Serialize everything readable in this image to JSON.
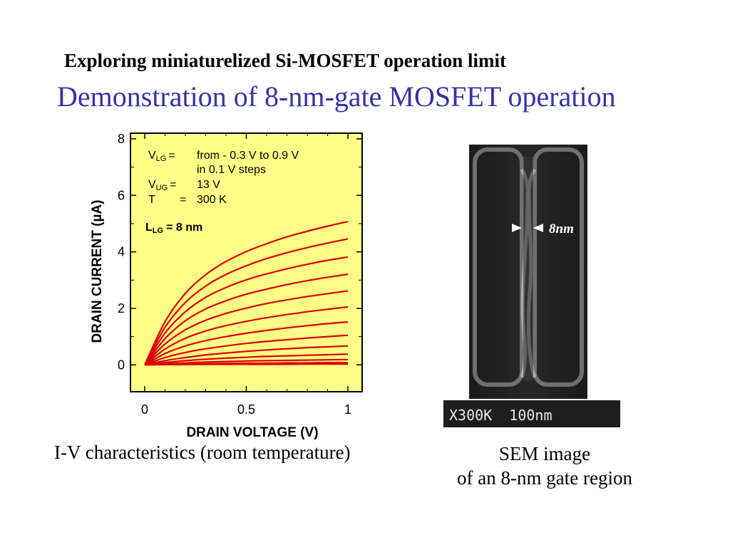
{
  "slide": {
    "subtitle": "Exploring miniaturelized Si-MOSFET operation limit",
    "title": "Demonstration of 8-nm-gate MOSFET operation",
    "caption_left": "I-V characteristics (room temperature)",
    "caption_right_line1": "SEM image",
    "caption_right_line2": "of an 8-nm gate region"
  },
  "annotation": {
    "vlg_label": "V",
    "vlg_sub": "LG",
    "vlg_eq": "=",
    "vlg_value": "from - 0.3 V to 0.9 V",
    "vlg_value2": "in 0.1 V steps",
    "vug_label": "V",
    "vug_sub": "UG",
    "vug_eq": "=",
    "vug_value": "13 V",
    "t_label": "T",
    "t_eq": "=",
    "t_value": "300 K",
    "lg_label": "L",
    "lg_sub": "LG",
    "lg_value": "= 8 nm"
  },
  "sem": {
    "scale_text": "X300K  100nm",
    "marker_text": "8nm"
  },
  "colors": {
    "plot_bg": "#ffff88",
    "curve": "#dd0000",
    "title": "#3333a8"
  },
  "chart_data": {
    "type": "line",
    "xlabel": "DRAIN VOLTAGE (V)",
    "ylabel": "DRAIN CURRENT (µA)",
    "xlim": [
      -0.07,
      1.07
    ],
    "ylim": [
      -0.95,
      8.2
    ],
    "xticks": [
      0,
      0.5,
      1
    ],
    "xtick_labels": [
      "0",
      "0.5",
      "1"
    ],
    "yticks": [
      0,
      2,
      4,
      6,
      8
    ],
    "ytick_labels": [
      "0",
      "2",
      "4",
      "6",
      "8"
    ],
    "grid": false,
    "x": [
      0,
      0.1,
      0.2,
      0.3,
      0.4,
      0.5,
      0.6,
      0.7,
      0.8,
      0.9,
      1.0
    ],
    "series": [
      {
        "values": [
          0,
          0.01,
          0.01,
          0.02,
          0.02,
          0.02,
          0.02,
          0.02,
          0.03,
          0.03,
          0.03
        ]
      },
      {
        "values": [
          0,
          0.02,
          0.03,
          0.04,
          0.05,
          0.06,
          0.06,
          0.07,
          0.07,
          0.08,
          0.08
        ]
      },
      {
        "values": [
          0,
          0.04,
          0.07,
          0.1,
          0.12,
          0.14,
          0.15,
          0.16,
          0.17,
          0.18,
          0.19
        ]
      },
      {
        "values": [
          0,
          0.08,
          0.15,
          0.2,
          0.24,
          0.27,
          0.3,
          0.32,
          0.34,
          0.36,
          0.38
        ]
      },
      {
        "values": [
          0,
          0.15,
          0.26,
          0.35,
          0.42,
          0.48,
          0.53,
          0.57,
          0.61,
          0.64,
          0.67
        ]
      },
      {
        "values": [
          0,
          0.26,
          0.44,
          0.57,
          0.67,
          0.76,
          0.83,
          0.89,
          0.95,
          1.0,
          1.05
        ]
      },
      {
        "values": [
          0,
          0.4,
          0.67,
          0.86,
          1.0,
          1.12,
          1.22,
          1.31,
          1.39,
          1.46,
          1.52
        ]
      },
      {
        "values": [
          0,
          0.56,
          0.94,
          1.2,
          1.39,
          1.54,
          1.67,
          1.78,
          1.88,
          1.97,
          2.05
        ]
      },
      {
        "values": [
          0,
          0.74,
          1.24,
          1.58,
          1.82,
          2.01,
          2.17,
          2.3,
          2.42,
          2.52,
          2.62
        ]
      },
      {
        "values": [
          0,
          0.93,
          1.56,
          1.98,
          2.27,
          2.5,
          2.68,
          2.84,
          2.98,
          3.1,
          3.21
        ]
      },
      {
        "values": [
          0,
          1.13,
          1.88,
          2.39,
          2.74,
          3.01,
          3.22,
          3.4,
          3.56,
          3.7,
          3.82
        ]
      },
      {
        "values": [
          0,
          1.33,
          2.21,
          2.79,
          3.2,
          3.51,
          3.76,
          3.97,
          4.15,
          4.31,
          4.46
        ]
      },
      {
        "values": [
          0,
          1.53,
          2.53,
          3.19,
          3.66,
          4.01,
          4.29,
          4.53,
          4.73,
          4.91,
          5.07
        ]
      }
    ]
  }
}
